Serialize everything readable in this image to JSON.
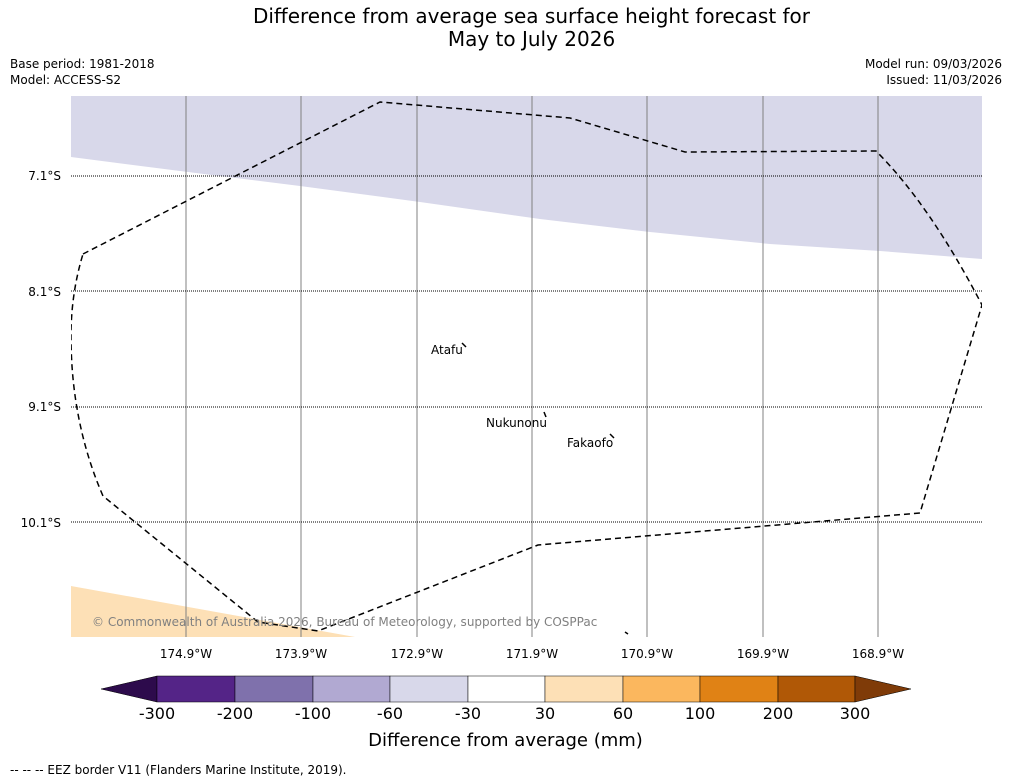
{
  "title": {
    "line1": "Difference from average sea surface height forecast for",
    "line2": "May to July 2026"
  },
  "meta": {
    "base_period": "Base period: 1981-2018",
    "model": "Model: ACCESS-S2",
    "model_run": "Model run: 09/03/2026",
    "issued": "Issued: 11/03/2026"
  },
  "map": {
    "lat_labels": [
      "7.1°S",
      "8.1°S",
      "9.1°S",
      "10.1°S"
    ],
    "lon_labels": [
      "174.9°W",
      "173.9°W",
      "172.9°W",
      "171.9°W",
      "170.9°W",
      "169.9°W",
      "168.9°W"
    ],
    "places": [
      "Atafu",
      "Nukunonu",
      "Fakaofo"
    ],
    "copyright": "© Commonwealth of Australia 2026, Bureau of Meteorology, supported by COSPPac",
    "colors": {
      "band_minus60_minus30": "#d8d8ea",
      "band_30_60": "#fde0b6",
      "graticule_lon": "#808080",
      "graticule_lat": "#000000",
      "eez_border": "#000000"
    }
  },
  "colorbar": {
    "tick_labels": [
      "-300",
      "-200",
      "-100",
      "-60",
      "-30",
      "30",
      "60",
      "100",
      "200",
      "300"
    ],
    "colors": [
      "#2d0b4c",
      "#542487",
      "#7f71ac",
      "#b1a9d2",
      "#d8d8ea",
      "#ffffff",
      "#fde0b6",
      "#fbb75e",
      "#e08215",
      "#b05806",
      "#7f3b08"
    ],
    "label": "Difference from average (mm)"
  },
  "footer": {
    "eez_note": "--  --  -- EEZ border V11 (Flanders Marine Institute, 2019)."
  }
}
